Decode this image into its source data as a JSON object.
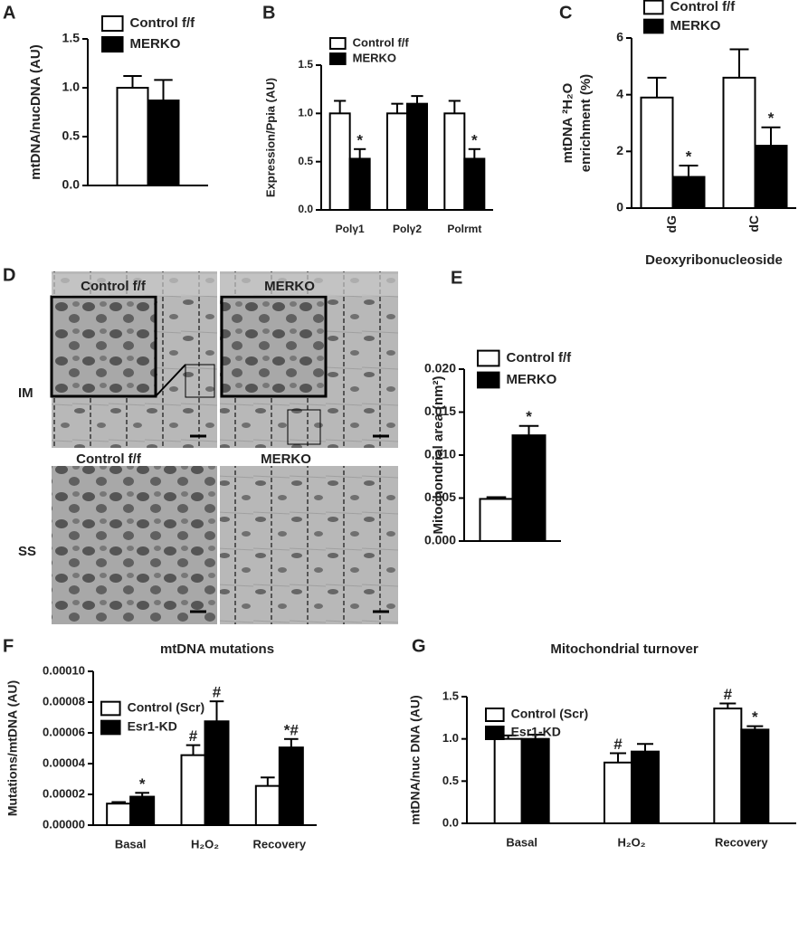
{
  "chart_data": [
    {
      "type": "bar",
      "panel": "A",
      "y_label": [
        "mtDNA/nucDNA (AU)"
      ],
      "ylim": [
        0,
        1.5
      ],
      "yticks": [
        {
          "value": 0,
          "label": "0.0"
        },
        0.5,
        {
          "value": 1,
          "label": "1.0"
        },
        1.5
      ],
      "series": [
        {
          "name": "Control f/f",
          "color": "#ffffff",
          "values": [
            1.0
          ],
          "errors": [
            0.12
          ],
          "markers": [
            null
          ]
        },
        {
          "name": "MERKO",
          "color": "#000000",
          "values": [
            0.87
          ],
          "errors": [
            0.21
          ],
          "markers": [
            null
          ]
        }
      ]
    },
    {
      "type": "bar",
      "panel": "B",
      "y_label": [
        "Expression/Ppia (AU)"
      ],
      "categories": [
        "Polγ1",
        "Polγ2",
        "Polrmt"
      ],
      "ylim": [
        0,
        1.5
      ],
      "yticks": [
        {
          "value": 0,
          "label": "0.0"
        },
        0.5,
        {
          "value": 1,
          "label": "1.0"
        },
        1.5
      ],
      "series": [
        {
          "name": "Control f/f",
          "color": "#ffffff",
          "values": [
            1.0,
            1.0,
            1.0
          ],
          "errors": [
            0.13,
            0.1,
            0.13
          ],
          "markers": [
            null,
            null,
            null
          ]
        },
        {
          "name": "MERKO",
          "color": "#000000",
          "values": [
            0.53,
            1.1,
            0.53
          ],
          "errors": [
            0.1,
            0.08,
            0.1
          ],
          "markers": [
            "*",
            null,
            "*"
          ]
        }
      ]
    },
    {
      "type": "bar",
      "panel": "C",
      "y_label": [
        "mtDNA ²H₂O",
        "enrichment (%)"
      ],
      "x_label": "Deoxyribonucleoside",
      "categories": [
        "dG",
        "dC"
      ],
      "ylim": [
        0,
        6
      ],
      "yticks": [
        0,
        2,
        4,
        6
      ],
      "series": [
        {
          "name": "Control f/f",
          "color": "#ffffff",
          "values": [
            3.9,
            4.6
          ],
          "errors": [
            0.7,
            1.0
          ],
          "markers": [
            null,
            null
          ]
        },
        {
          "name": "MERKO",
          "color": "#000000",
          "values": [
            1.1,
            2.2
          ],
          "errors": [
            0.4,
            0.65
          ],
          "markers": [
            "*",
            "*"
          ]
        }
      ]
    },
    {
      "type": "bar",
      "panel": "E",
      "y_label": [
        "Mitochondrial area (nm²)"
      ],
      "ylim": [
        0,
        0.02
      ],
      "yticks": [
        {
          "value": 0,
          "label": "0.000"
        },
        0.005,
        {
          "value": 0.01,
          "label": "0.010"
        },
        0.015,
        {
          "value": 0.02,
          "label": "0.020"
        }
      ],
      "series": [
        {
          "name": "Control f/f",
          "color": "#ffffff",
          "values": [
            0.0049
          ],
          "errors": [
            0.0002
          ],
          "markers": [
            null
          ]
        },
        {
          "name": "MERKO",
          "color": "#000000",
          "values": [
            0.0123
          ],
          "errors": [
            0.0011
          ],
          "markers": [
            "*"
          ]
        }
      ]
    },
    {
      "type": "bar",
      "panel": "F",
      "title": "mtDNA mutations",
      "y_label": [
        "Mutations/mtDNA (AU)"
      ],
      "categories": [
        "Basal",
        "H₂O₂",
        "Recovery"
      ],
      "ylim": [
        0,
        0.0001
      ],
      "yticks": [
        {
          "value": 0,
          "label": "0.00000"
        },
        {
          "value": 2e-05,
          "label": "0.00002"
        },
        {
          "value": 4e-05,
          "label": "0.00004"
        },
        {
          "value": 6e-05,
          "label": "0.00006"
        },
        {
          "value": 8e-05,
          "label": "0.00008"
        },
        {
          "value": 0.0001,
          "label": "0.00010"
        }
      ],
      "series": [
        {
          "name": "Control (Scr)",
          "color": "#ffffff",
          "values": [
            1.4e-05,
            4.55e-05,
            2.55e-05
          ],
          "errors": [
            1e-06,
            6.5e-06,
            5.5e-06
          ],
          "markers": [
            null,
            "#",
            null
          ]
        },
        {
          "name": "Esr1-KD",
          "color": "#000000",
          "values": [
            1.85e-05,
            6.75e-05,
            5.05e-05
          ],
          "errors": [
            2.5e-06,
            1.3e-05,
            5.5e-06
          ],
          "markers": [
            "*",
            "#",
            "*#"
          ]
        }
      ]
    },
    {
      "type": "bar",
      "panel": "G",
      "title": "Mitochondrial turnover",
      "y_label": [
        "mtDNA/nuc DNA (AU)"
      ],
      "categories": [
        "Basal",
        "H₂O₂",
        "Recovery"
      ],
      "ylim": [
        0,
        1.5
      ],
      "yticks": [
        {
          "value": 0,
          "label": "0.0"
        },
        0.5,
        {
          "value": 1,
          "label": "1.0"
        },
        1.5
      ],
      "series": [
        {
          "name": "Control (Scr)",
          "color": "#ffffff",
          "values": [
            1.0,
            0.72,
            1.36
          ],
          "errors": [
            0.04,
            0.11,
            0.06
          ],
          "markers": [
            null,
            "#",
            "#"
          ]
        },
        {
          "name": "Esr1-KD",
          "color": "#000000",
          "values": [
            1.0,
            0.85,
            1.11
          ],
          "errors": [
            0.05,
            0.09,
            0.04
          ],
          "markers": [
            null,
            null,
            "*"
          ]
        }
      ]
    }
  ],
  "micrographs": {
    "panel": "D",
    "top_labels": [
      "Control f/f",
      "MERKO"
    ],
    "bottom_labels": [
      "Control f/f",
      "MERKO"
    ],
    "row_labels": [
      "IM",
      "SS"
    ]
  }
}
